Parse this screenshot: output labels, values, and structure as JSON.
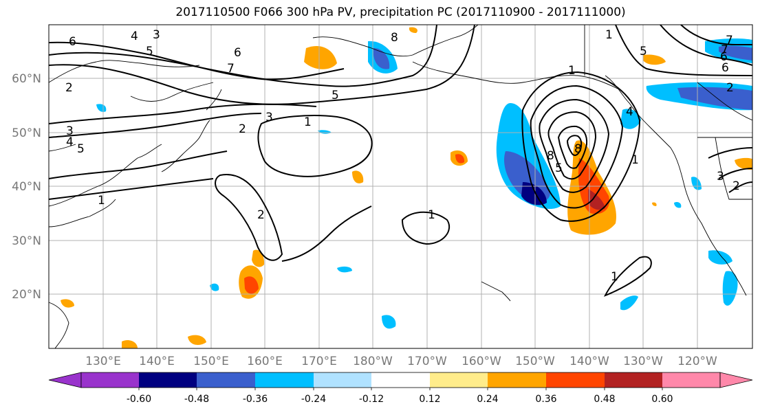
{
  "title": "2017110500 F066 300 hPa PV, precipitation PC (2017110900 - 2017111000)",
  "map": {
    "lat_labels": [
      "60°N",
      "50°N",
      "40°N",
      "30°N",
      "20°N"
    ],
    "lon_labels": [
      "130°E",
      "140°E",
      "150°E",
      "160°E",
      "170°E",
      "180°W",
      "170°W",
      "160°W",
      "150°W",
      "140°W",
      "130°W",
      "120°W"
    ],
    "contour_labels": [
      "6",
      "4",
      "3",
      "5",
      "6",
      "7",
      "2",
      "3",
      "2",
      "5",
      "4",
      "5",
      "3",
      "1",
      "1",
      "2",
      "1",
      "1",
      "5",
      "8",
      "8",
      "1",
      "4",
      "1",
      "8",
      "6",
      "7",
      "2",
      "3",
      "2",
      "5",
      "6",
      "7",
      "1"
    ],
    "colors": {
      "land_outline": "#000000",
      "contour": "#000000",
      "grid": "#b0b0b0"
    }
  },
  "colorbar": {
    "labels": [
      "-0.60",
      "-0.48",
      "-0.36",
      "-0.24",
      "-0.12",
      "0.12",
      "0.24",
      "0.36",
      "0.48",
      "0.60"
    ],
    "colors": [
      "#9933cc",
      "#000080",
      "#3a5fcd",
      "#00bfff",
      "#b0e2ff",
      "#ffffff",
      "#ffec8b",
      "#ffa500",
      "#ff4500",
      "#b22222",
      "#ff88aa"
    ]
  }
}
